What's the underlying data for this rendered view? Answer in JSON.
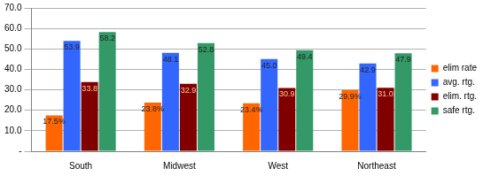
{
  "chart_data": {
    "type": "bar",
    "categories": [
      "South",
      "Midwest",
      "West",
      "Northeast"
    ],
    "series": [
      {
        "name": "elim rate",
        "color": "#ff6600",
        "values": [
          17.5,
          23.8,
          23.4,
          29.9
        ],
        "value_labels": [
          "17.5%",
          "23.8%",
          "23.4%",
          "29.9%"
        ]
      },
      {
        "name": "avg. rtg.",
        "color": "#3366ff",
        "values": [
          53.9,
          48.1,
          45.0,
          42.9
        ],
        "value_labels": [
          "53.9",
          "48.1",
          "45.0",
          "42.9"
        ]
      },
      {
        "name": "elim. rtg.",
        "color": "#800000",
        "values": [
          33.8,
          32.9,
          30.9,
          31.0
        ],
        "value_labels": [
          "33.8",
          "32.9",
          "30.9",
          "31.0"
        ]
      },
      {
        "name": "safe rtg.",
        "color": "#339966",
        "values": [
          58.2,
          52.8,
          49.4,
          47.9
        ],
        "value_labels": [
          "58.2",
          "52.8",
          "49.4",
          "47.9"
        ]
      }
    ],
    "ylim": [
      0,
      70
    ],
    "yticks": [
      {
        "value": 0,
        "label": "-"
      },
      {
        "value": 10,
        "label": "10.0"
      },
      {
        "value": 20,
        "label": "20.0"
      },
      {
        "value": 30,
        "label": "30.0"
      },
      {
        "value": 40,
        "label": "40.0"
      },
      {
        "value": 50,
        "label": "50.0"
      },
      {
        "value": 60,
        "label": "60.0"
      },
      {
        "value": 70,
        "label": "70.0"
      }
    ],
    "grid": true,
    "legend": "right",
    "data_labels": true
  }
}
